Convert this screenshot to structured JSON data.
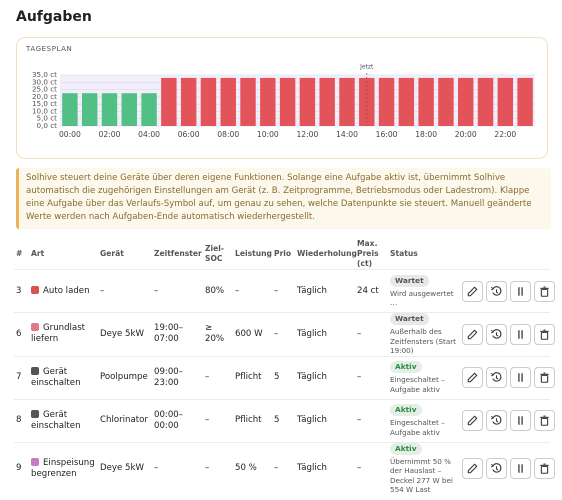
{
  "header": {
    "title": "Aufgaben"
  },
  "chart_data": {
    "type": "bar",
    "title": "TAGESPLAN",
    "annotation": "Jetzt",
    "categories": [
      "00:00",
      null,
      "02:00",
      null,
      "04:00",
      null,
      "06:00",
      null,
      "08:00",
      null,
      "10:00",
      null,
      "12:00",
      null,
      "14:00",
      null,
      "16:00",
      null,
      "18:00",
      null,
      "20:00",
      null,
      "22:00",
      null
    ],
    "values": [
      22.5,
      22.5,
      22.5,
      22.5,
      22.5,
      33,
      33,
      33,
      33,
      33,
      33,
      33,
      33,
      33,
      33,
      33,
      33,
      33,
      33,
      33,
      33,
      33,
      33,
      33
    ],
    "colors": [
      "#52bf85",
      "#52bf85",
      "#52bf85",
      "#52bf85",
      "#52bf85",
      "#e3545a",
      "#e3545a",
      "#e3545a",
      "#e3545a",
      "#e3545a",
      "#e3545a",
      "#e3545a",
      "#e3545a",
      "#e3545a",
      "#e3545a",
      "#e3545a",
      "#e3545a",
      "#e3545a",
      "#e3545a",
      "#e3545a",
      "#e3545a",
      "#e3545a",
      "#e3545a",
      "#e3545a"
    ],
    "ylim": [
      0,
      35
    ],
    "yticks": [
      {
        "value": 0,
        "label": "0,0 ct"
      },
      {
        "value": 5,
        "label": "5,0 ct"
      },
      {
        "value": 10,
        "label": "10,0 ct"
      },
      {
        "value": 15,
        "label": "15,0 ct"
      },
      {
        "value": 20,
        "label": "20,0 ct"
      },
      {
        "value": 25,
        "label": "25,0 ct"
      },
      {
        "value": 30,
        "label": "30,0 ct"
      },
      {
        "value": 35,
        "label": "35,0 ct"
      }
    ],
    "grid": true
  },
  "info": {
    "text": "Solhive steuert deine Geräte über deren eigene Funktionen. Solange eine Aufgabe aktiv ist, übernimmt Solhive automatisch die zugehörigen Einstellungen am Gerät (z. B. Zeitprogramme, Betriebsmodus oder Ladestrom). Klappe eine Aufgabe über das Verlaufs-Symbol auf, um genau zu sehen, welche Datenpunkte sie steuert. Manuell geänderte Werte werden nach Aufgaben-Ende automatisch wiederhergestellt."
  },
  "table": {
    "headers": [
      "#",
      "Art",
      "Gerät",
      "Zeitfenster",
      "Ziel-SOC",
      "Leistung",
      "Prio",
      "Wiederholung",
      "Max. Preis (ct)",
      "Status"
    ],
    "rows": [
      {
        "id": "3",
        "art": "Auto laden",
        "geraet": "–",
        "zeitfenster": "–",
        "ziel_soc": "80%",
        "leistung": "–",
        "prio": "–",
        "wiederholung": "Täglich",
        "max_preis": "24 ct",
        "status": "Wartet",
        "status_color": "#555555",
        "status_detail": "Wird ausgewertet …",
        "icon_color": "#d9534f"
      },
      {
        "id": "6",
        "art": "Grundlast liefern",
        "geraet": "Deye 5kW",
        "zeitfenster": "19:00–07:00",
        "ziel_soc": "≥ 20%",
        "leistung": "600 W",
        "prio": "–",
        "wiederholung": "Täglich",
        "max_preis": "–",
        "status": "Wartet",
        "status_color": "#555555",
        "status_detail": "Außerhalb des Zeitfensters (Start 19:00)",
        "icon_color": "#e07a8a"
      },
      {
        "id": "7",
        "art": "Gerät einschalten",
        "geraet": "Poolpumpe",
        "zeitfenster": "09:00–23:00",
        "ziel_soc": "–",
        "leistung": "Pflicht",
        "prio": "5",
        "wiederholung": "Täglich",
        "max_preis": "–",
        "status": "Aktiv",
        "status_color": "#2f8a42",
        "status_detail": "Eingeschaltet – Aufgabe aktiv",
        "icon_color": "#555555"
      },
      {
        "id": "8",
        "art": "Gerät einschalten",
        "geraet": "Chlorinator",
        "zeitfenster": "00:00–00:00",
        "ziel_soc": "–",
        "leistung": "Pflicht",
        "prio": "5",
        "wiederholung": "Täglich",
        "max_preis": "–",
        "status": "Aktiv",
        "status_color": "#2f8a42",
        "status_detail": "Eingeschaltet – Aufgabe aktiv",
        "icon_color": "#555555"
      },
      {
        "id": "9",
        "art": "Einspeisung begrenzen",
        "geraet": "Deye 5kW",
        "zeitfenster": "–",
        "ziel_soc": "–",
        "leistung": "50 %",
        "prio": "–",
        "wiederholung": "Täglich",
        "max_preis": "–",
        "status": "Aktiv",
        "status_color": "#2f8a42",
        "status_detail": "Übernimmt 50 % der Hauslast – Deckel 277 W bei 554 W Last",
        "icon_color": "#c77bc0"
      }
    ]
  }
}
